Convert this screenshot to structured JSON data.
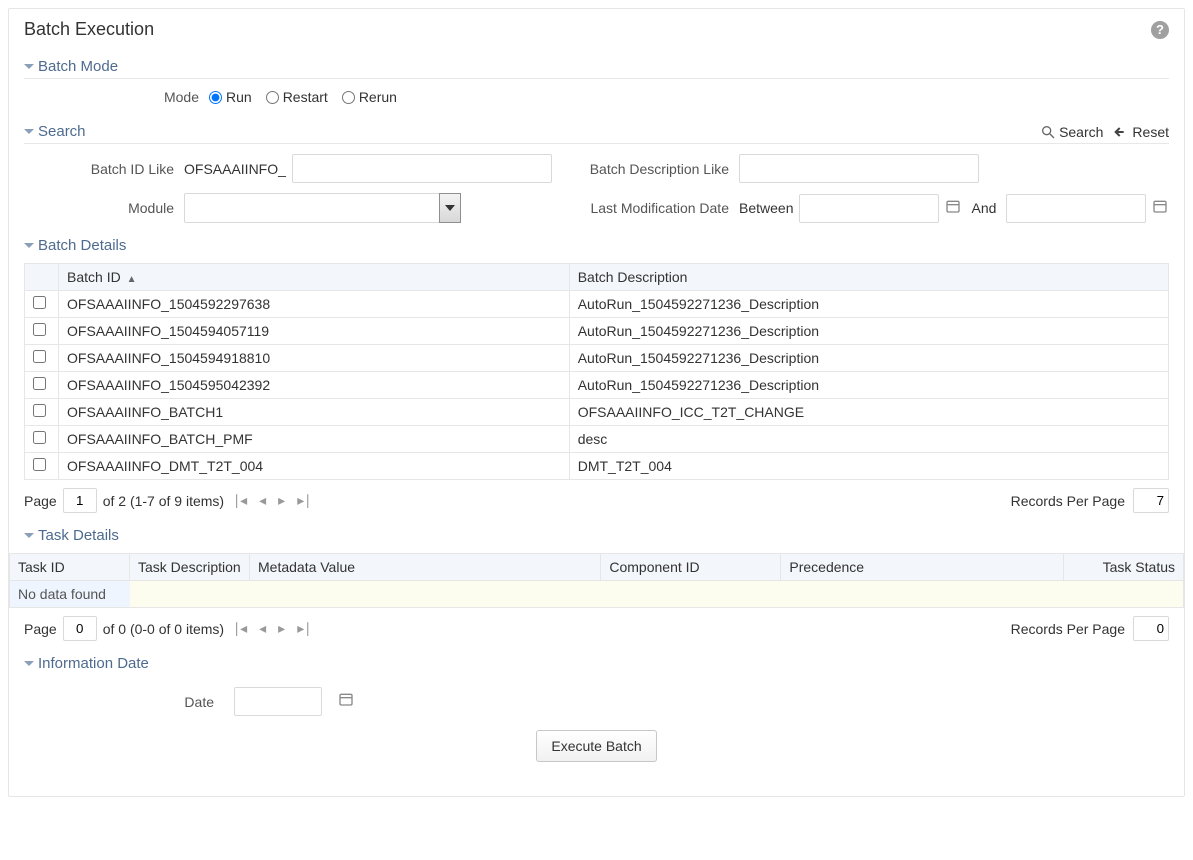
{
  "page": {
    "title": "Batch Execution"
  },
  "batchMode": {
    "sectionTitle": "Batch Mode",
    "label": "Mode",
    "options": {
      "run": "Run",
      "restart": "Restart",
      "rerun": "Rerun"
    },
    "selected": "run"
  },
  "search": {
    "sectionTitle": "Search",
    "searchAction": "Search",
    "resetAction": "Reset",
    "batchIdLikeLabel": "Batch ID Like",
    "batchIdPrefix": "OFSAAAIINFO_",
    "batchDescLabel": "Batch Description Like",
    "moduleLabel": "Module",
    "lastModLabel": "Last Modification Date",
    "betweenLabel": "Between",
    "andLabel": "And"
  },
  "batchDetails": {
    "sectionTitle": "Batch Details",
    "cols": {
      "id": "Batch ID",
      "desc": "Batch Description"
    },
    "rows": [
      {
        "id": "OFSAAAIINFO_1504592297638",
        "desc": "AutoRun_1504592271236_Description"
      },
      {
        "id": "OFSAAAIINFO_1504594057119",
        "desc": "AutoRun_1504592271236_Description"
      },
      {
        "id": "OFSAAAIINFO_1504594918810",
        "desc": "AutoRun_1504592271236_Description"
      },
      {
        "id": "OFSAAAIINFO_1504595042392",
        "desc": "AutoRun_1504592271236_Description"
      },
      {
        "id": "OFSAAAIINFO_BATCH1",
        "desc": "OFSAAAIINFO_ICC_T2T_CHANGE"
      },
      {
        "id": "OFSAAAIINFO_BATCH_PMF",
        "desc": "desc"
      },
      {
        "id": "OFSAAAIINFO_DMT_T2T_004",
        "desc": "DMT_T2T_004"
      }
    ],
    "pager": {
      "pageLabel": "Page",
      "page": "1",
      "ofText": "of 2 (1-7 of 9 items)",
      "rppLabel": "Records Per Page",
      "rpp": "7"
    }
  },
  "taskDetails": {
    "sectionTitle": "Task Details",
    "cols": {
      "taskId": "Task ID",
      "taskDesc": "Task Description",
      "meta": "Metadata Value",
      "comp": "Component ID",
      "prec": "Precedence",
      "status": "Task Status"
    },
    "noData": "No data found",
    "pager": {
      "pageLabel": "Page",
      "page": "0",
      "ofText": "of 0 (0-0 of 0 items)",
      "rppLabel": "Records Per Page",
      "rpp": "0"
    }
  },
  "infoDate": {
    "sectionTitle": "Information Date",
    "label": "Date"
  },
  "buttons": {
    "execute": "Execute Batch"
  },
  "colors": {
    "headingBlue": "#4e6b8f",
    "border": "#d9d9d9",
    "tableHeader": "#f3f6fa",
    "noDataBg": "#eef5ff",
    "help": "#a0a0a0"
  }
}
